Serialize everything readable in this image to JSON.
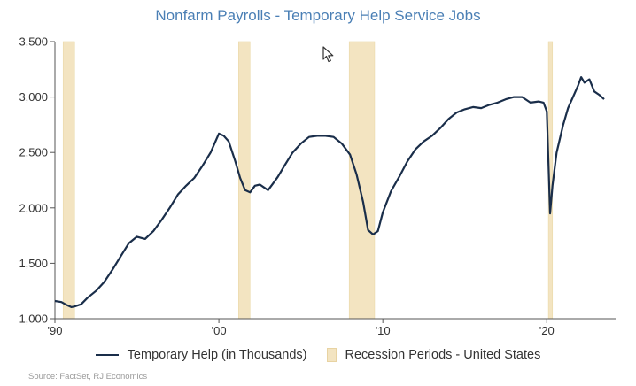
{
  "chart_data": {
    "type": "line",
    "title": "Nonfarm Payrolls - Temporary Help Service Jobs",
    "xlabel": "",
    "ylabel": "",
    "xlim": [
      1990.0,
      2024.2
    ],
    "ylim": [
      1000,
      3500
    ],
    "y_ticks": [
      1000,
      1500,
      2000,
      2500,
      3000,
      3500
    ],
    "y_tick_labels": [
      "1,000",
      "1,500",
      "2,000",
      "2,500",
      "3,000",
      "3,500"
    ],
    "x_ticks": [
      1990,
      2000,
      2010,
      2020
    ],
    "x_tick_labels": [
      "'90",
      "'00",
      "'10",
      "'20"
    ],
    "grid": false,
    "legend_position": "bottom",
    "series": [
      {
        "name": "Temporary Help (in Thousands)",
        "color": "#1a2e4a",
        "x": [
          1990.0,
          1990.4,
          1990.7,
          1991.0,
          1991.2,
          1991.6,
          1992.0,
          1992.5,
          1993.0,
          1993.5,
          1994.0,
          1994.5,
          1995.0,
          1995.5,
          1996.0,
          1996.5,
          1997.0,
          1997.5,
          1998.0,
          1998.5,
          1999.0,
          1999.5,
          2000.0,
          2000.3,
          2000.6,
          2001.0,
          2001.3,
          2001.6,
          2001.9,
          2002.2,
          2002.5,
          2002.8,
          2003.0,
          2003.3,
          2003.6,
          2004.0,
          2004.5,
          2005.0,
          2005.5,
          2006.0,
          2006.5,
          2007.0,
          2007.5,
          2008.0,
          2008.4,
          2008.8,
          2009.1,
          2009.4,
          2009.7,
          2010.0,
          2010.5,
          2011.0,
          2011.5,
          2012.0,
          2012.5,
          2013.0,
          2013.5,
          2014.0,
          2014.5,
          2015.0,
          2015.5,
          2016.0,
          2016.5,
          2017.0,
          2017.5,
          2018.0,
          2018.5,
          2019.0,
          2019.5,
          2019.8,
          2020.0,
          2020.2,
          2020.35,
          2020.6,
          2021.0,
          2021.3,
          2021.6,
          2021.9,
          2022.1,
          2022.3,
          2022.6,
          2022.9,
          2023.2,
          2023.5
        ],
        "values": [
          1160,
          1150,
          1125,
          1105,
          1110,
          1130,
          1190,
          1250,
          1330,
          1440,
          1560,
          1680,
          1740,
          1720,
          1790,
          1890,
          2000,
          2120,
          2200,
          2270,
          2380,
          2500,
          2670,
          2650,
          2600,
          2420,
          2270,
          2160,
          2140,
          2200,
          2210,
          2180,
          2160,
          2220,
          2280,
          2380,
          2500,
          2580,
          2640,
          2650,
          2650,
          2640,
          2580,
          2480,
          2300,
          2050,
          1800,
          1760,
          1790,
          1960,
          2150,
          2280,
          2420,
          2530,
          2600,
          2650,
          2720,
          2800,
          2860,
          2890,
          2910,
          2900,
          2930,
          2950,
          2980,
          3000,
          3000,
          2950,
          2960,
          2950,
          2870,
          1950,
          2200,
          2500,
          2750,
          2900,
          3000,
          3100,
          3180,
          3130,
          3160,
          3050,
          3020,
          2980
        ]
      }
    ],
    "recession_periods": {
      "name": "Recession Periods - United States",
      "color": "#f3e4c1",
      "ranges": [
        [
          1990.5,
          1991.2
        ],
        [
          2001.2,
          2001.9
        ],
        [
          2007.95,
          2009.5
        ],
        [
          2020.1,
          2020.35
        ]
      ]
    },
    "source": "Source: FactSet, RJ Economics"
  }
}
